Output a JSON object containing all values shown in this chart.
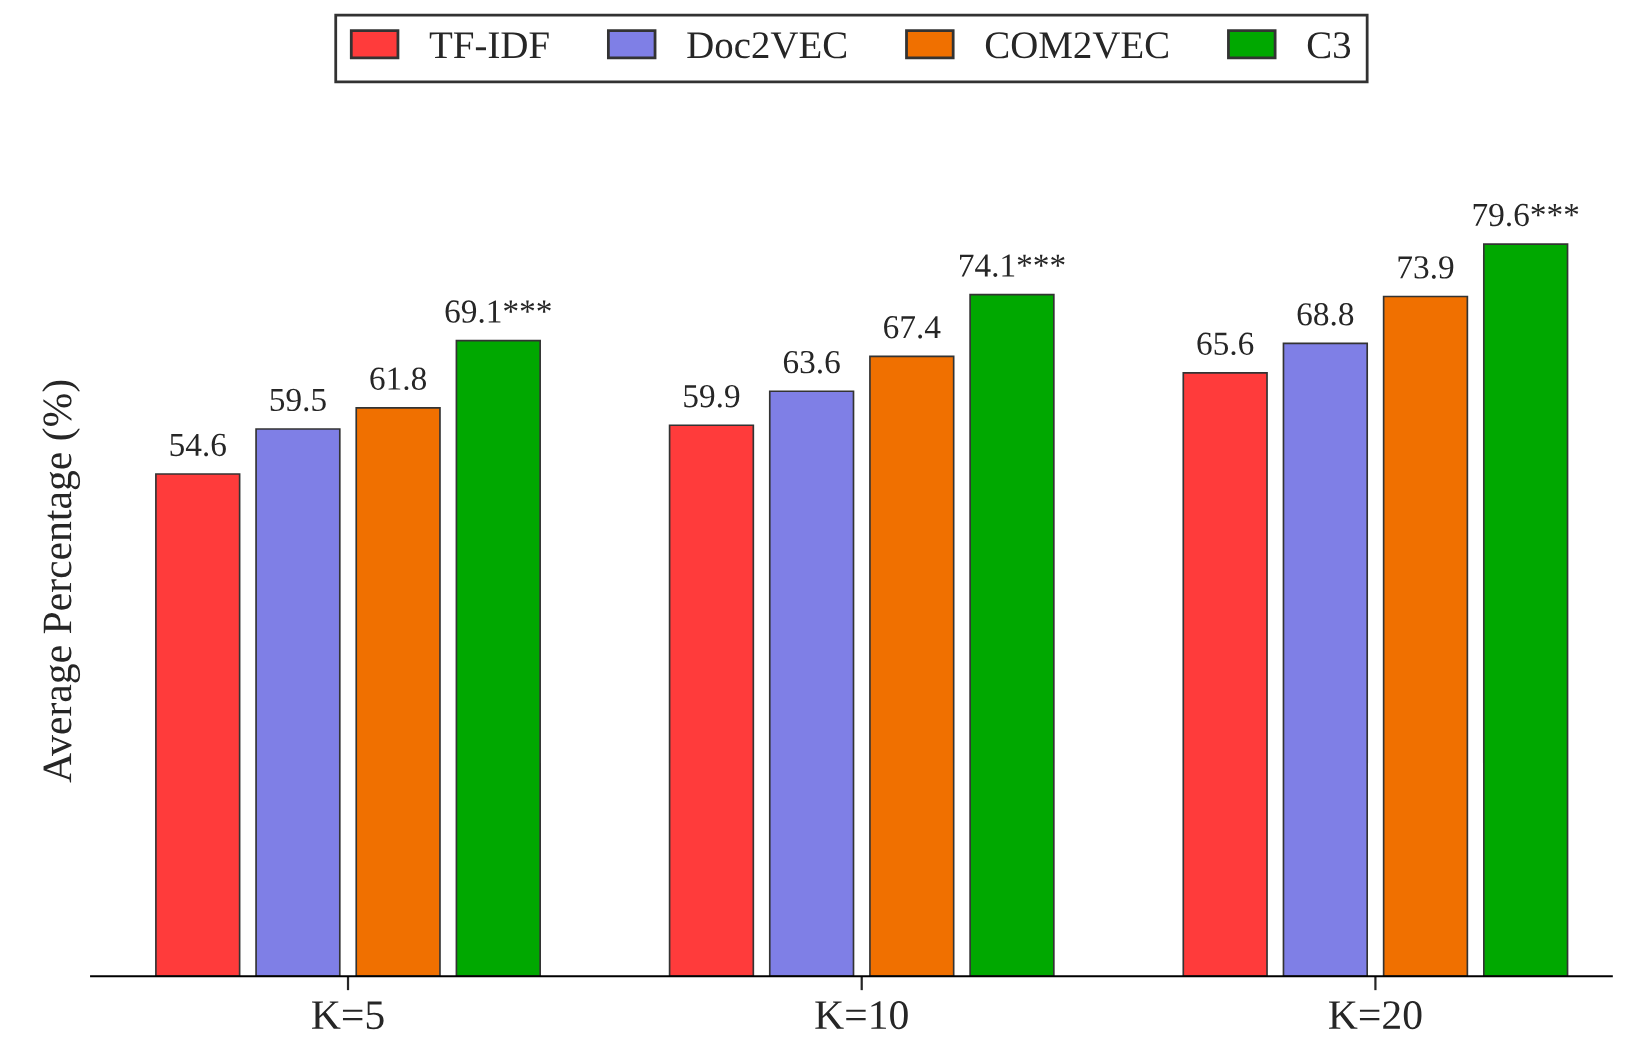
{
  "chart_data": {
    "type": "bar",
    "ylabel": "Average Percentage (%)",
    "categories": [
      "K=5",
      "K=10",
      "K=20"
    ],
    "series": [
      {
        "name": "TF-IDF",
        "color": "#ff3b3b",
        "values": [
          54.6,
          59.9,
          65.6
        ],
        "value_labels": [
          "54.6",
          "59.9",
          "65.6"
        ]
      },
      {
        "name": "Doc2VEC",
        "color": "#7f7fe6",
        "values": [
          59.5,
          63.6,
          68.8
        ],
        "value_labels": [
          "59.5",
          "63.6",
          "68.8"
        ]
      },
      {
        "name": "COM2VEC",
        "color": "#f07000",
        "values": [
          61.8,
          67.4,
          73.9
        ],
        "value_labels": [
          "61.8",
          "67.4",
          "73.9"
        ]
      },
      {
        "name": "C3",
        "color": "#00a800",
        "values": [
          69.1,
          74.1,
          79.6
        ],
        "value_labels": [
          "69.1***",
          "74.1***",
          "79.6***"
        ]
      }
    ],
    "tick_labels": "x",
    "grid": false,
    "legend": "top"
  }
}
